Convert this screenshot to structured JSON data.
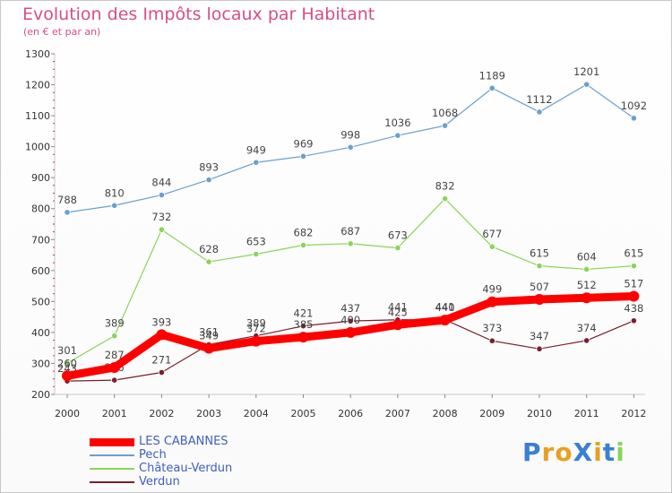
{
  "title": "Evolution des Impôts locaux par Habitant",
  "subtitle": "(en € et par an)",
  "brand": "ProXiti",
  "chart_data": {
    "type": "line",
    "x": [
      "2000",
      "2001",
      "2002",
      "2003",
      "2004",
      "2005",
      "2006",
      "2007",
      "2008",
      "2009",
      "2010",
      "2011",
      "2012"
    ],
    "ylim": [
      200,
      1300
    ],
    "yticks": [
      200,
      300,
      400,
      500,
      600,
      700,
      800,
      900,
      1000,
      1100,
      1200,
      1300
    ],
    "grid": false,
    "legend_position": "bottom-left",
    "series": [
      {
        "name": "LES CABANNES",
        "color": "#ff0000",
        "values": [
          260,
          287,
          393,
          349,
          372,
          385,
          400,
          425,
          440,
          499,
          507,
          512,
          517
        ]
      },
      {
        "name": "Pech",
        "color": "#6b9fd0",
        "values": [
          788,
          810,
          844,
          893,
          949,
          969,
          998,
          1036,
          1068,
          1189,
          1112,
          1201,
          1092
        ]
      },
      {
        "name": "Château-Verdun",
        "color": "#8ad45a",
        "values": [
          301,
          389,
          732,
          628,
          653,
          682,
          687,
          673,
          832,
          677,
          615,
          604,
          615
        ]
      },
      {
        "name": "Verdun",
        "color": "#7a1f2b",
        "values": [
          243,
          246,
          271,
          361,
          389,
          421,
          437,
          441,
          441,
          373,
          347,
          374,
          438
        ]
      }
    ]
  }
}
